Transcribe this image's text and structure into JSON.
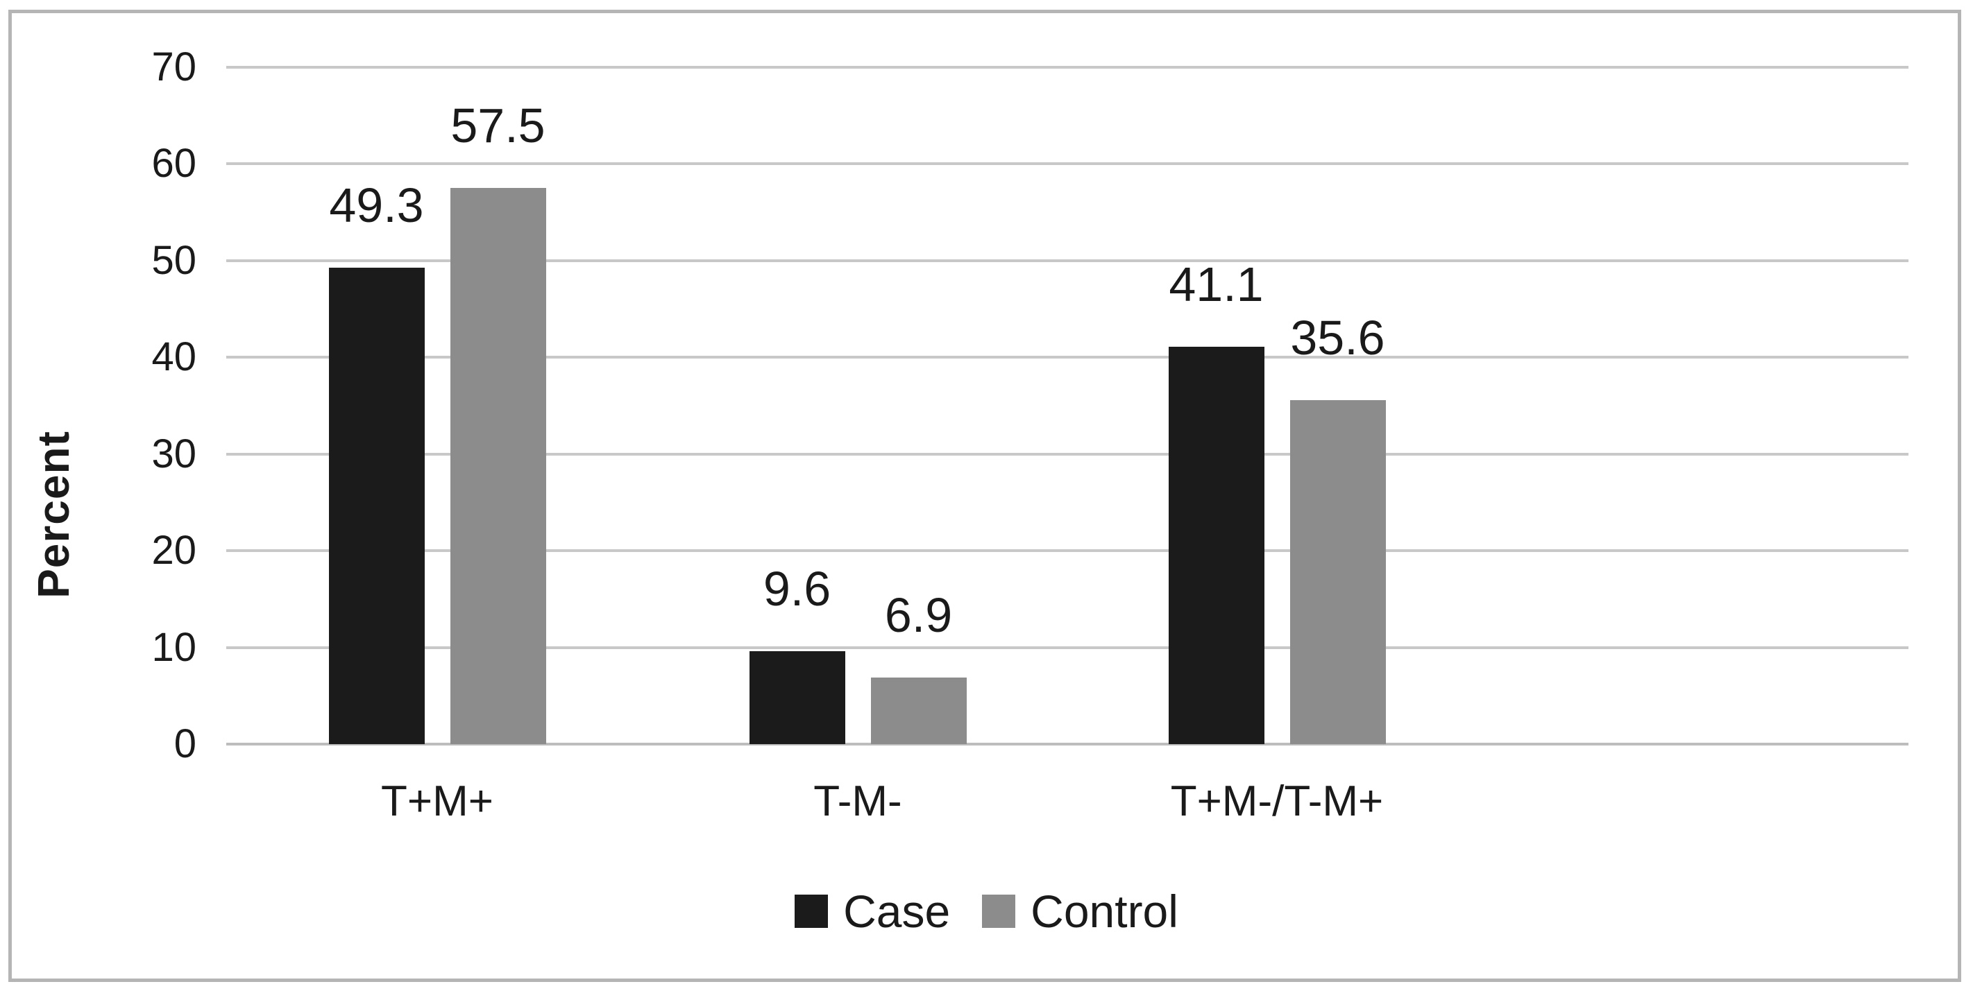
{
  "chart_data": {
    "type": "bar",
    "title": "",
    "categories": [
      "T+M+",
      "T-M-",
      "T+M-/T-M+"
    ],
    "series": [
      {
        "name": "Case",
        "color": "#1b1b1b",
        "values": [
          49.3,
          9.6,
          41.1
        ]
      },
      {
        "name": "Control",
        "color": "#8c8c8c",
        "values": [
          57.5,
          6.9,
          35.6
        ]
      }
    ],
    "value_labels": [
      "49.3",
      "57.5",
      "9.6",
      "6.9",
      "41.1",
      "35.6"
    ],
    "xlabel": "",
    "ylabel": "Percent",
    "ylim": [
      0,
      70
    ],
    "yticks": [
      0,
      10,
      20,
      30,
      40,
      50,
      60,
      70
    ],
    "grid": true,
    "legend_position": "bottom-center",
    "data_labels_shown": true
  },
  "colors": {
    "background": "#ffffff",
    "frame_border": "#b5b5b5",
    "gridline": "#c8c8c8",
    "text": "#1a1a1a",
    "case_bar": "#1b1b1b",
    "control_bar": "#8c8c8c"
  }
}
